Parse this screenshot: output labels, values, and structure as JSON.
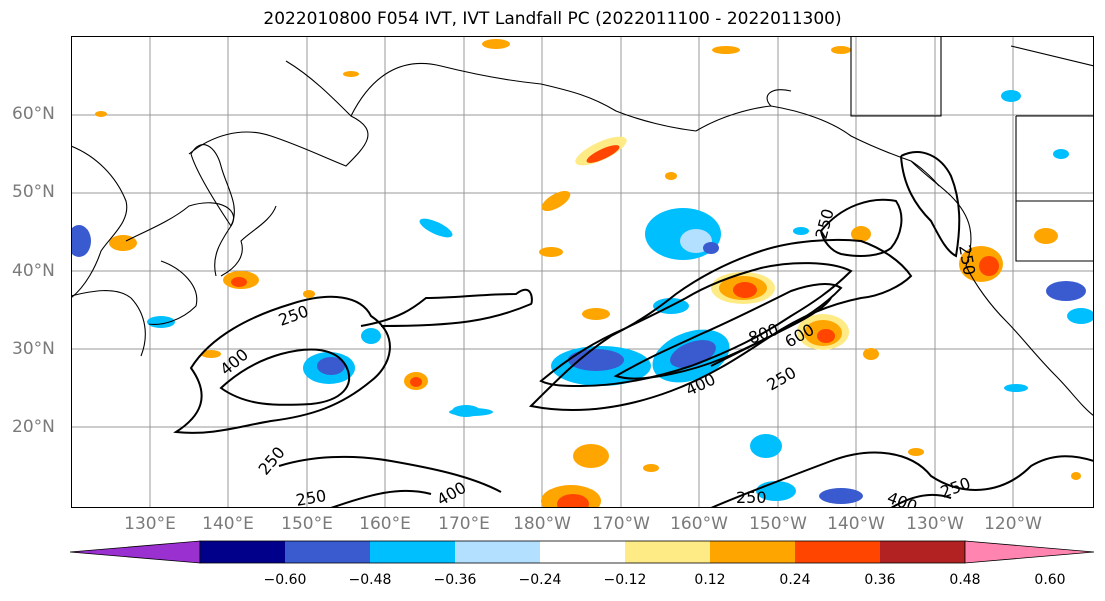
{
  "title": "2022010800 F054 IVT, IVT Landfall PC (2022011100 - 2022011300)",
  "lat_labels": [
    "60°N",
    "50°N",
    "40°N",
    "30°N",
    "20°N"
  ],
  "lon_labels": [
    "130°E",
    "140°E",
    "150°E",
    "160°E",
    "170°E",
    "180°W",
    "170°W",
    "160°W",
    "150°W",
    "140°W",
    "130°W",
    "120°W"
  ],
  "contour_labels": [
    "250",
    "400",
    "250",
    "400",
    "800",
    "600",
    "250",
    "250",
    "400",
    "250",
    "250",
    "400",
    "250",
    "250"
  ],
  "colorbar": {
    "ticks": [
      "−0.60",
      "−0.48",
      "−0.36",
      "−0.24",
      "−0.12",
      "0.12",
      "0.24",
      "0.36",
      "0.48",
      "0.60"
    ],
    "colors": [
      "#9b30d0",
      "#00008b",
      "#3a5bd0",
      "#00bfff",
      "#b3e0ff",
      "#ffffff",
      "#ffeb85",
      "#ffa500",
      "#ff4500",
      "#b22222",
      "#ff85b0"
    ]
  },
  "colors": {
    "coastline": "#000000",
    "grid": "#999999",
    "contour": "#000000",
    "axis_label": "#7a7a7a"
  }
}
